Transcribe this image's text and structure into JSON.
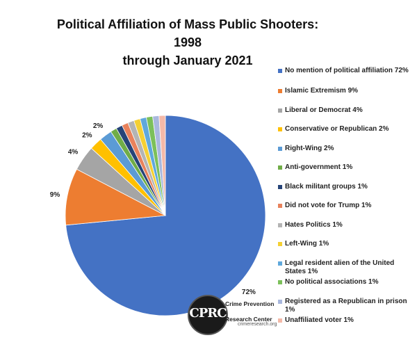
{
  "title_line1": "Political Affiliation of Mass Public Shooters: 1998",
  "title_line2": "through January 2021",
  "chart_data": {
    "type": "pie",
    "title": "Political Affiliation of Mass Public Shooters: 1998 through January 2021",
    "start_angle_deg": 0,
    "direction": "clockwise",
    "slices": [
      {
        "label": "No mention of political affiliation 72%",
        "value": 72,
        "color": "#4472C4",
        "data_label": "72%"
      },
      {
        "label": "Islamic Extremism 9%",
        "value": 9,
        "color": "#ED7D31",
        "data_label": "9%"
      },
      {
        "label": "Liberal or Democrat 4%",
        "value": 4,
        "color": "#A5A5A5",
        "data_label": "4%"
      },
      {
        "label": "Conservative or Republican 2%",
        "value": 2,
        "color": "#FFC000",
        "data_label": "2%"
      },
      {
        "label": "Right-Wing 2%",
        "value": 2,
        "color": "#5B9BD5",
        "data_label": "2%"
      },
      {
        "label": "Anti-government 1%",
        "value": 1,
        "color": "#70AD47",
        "data_label": ""
      },
      {
        "label": "Black militant groups 1%",
        "value": 1,
        "color": "#264478",
        "data_label": ""
      },
      {
        "label": "Did not vote for Trump 1%",
        "value": 1,
        "color": "#E8825C",
        "data_label": ""
      },
      {
        "label": "Hates Politics 1%",
        "value": 1,
        "color": "#B4B4B4",
        "data_label": ""
      },
      {
        "label": "Left-Wing 1%",
        "value": 1,
        "color": "#F5D033",
        "data_label": ""
      },
      {
        "label": "Legal resident alien of the United States 1%",
        "value": 1,
        "color": "#5FA8DC",
        "data_label": ""
      },
      {
        "label": "No political associations 1%",
        "value": 1,
        "color": "#7CC05A",
        "data_label": ""
      },
      {
        "label": "Registered as a Republican in prison 1%",
        "value": 1,
        "color": "#A9B8DE",
        "data_label": ""
      },
      {
        "label": "Unaffiliated voter 1%",
        "value": 1,
        "color": "#F4B9A8",
        "data_label": ""
      }
    ],
    "legend_position": "right"
  },
  "logo": {
    "mark": "CPRC",
    "name_line1": "Crime Prevention",
    "name_line2": "Research Center",
    "url": "crimeresearch.org"
  }
}
